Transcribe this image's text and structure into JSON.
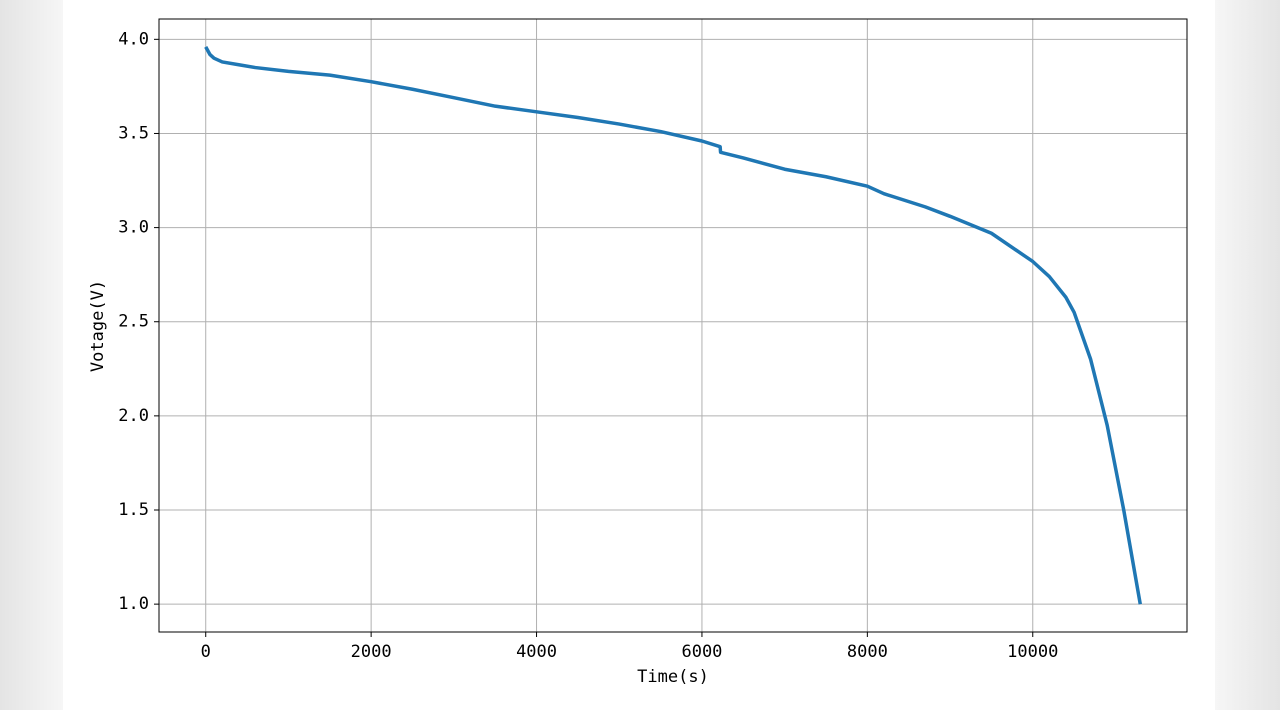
{
  "chart_data": {
    "type": "line",
    "x_label": "Time(s)",
    "y_label": "Votage(V)",
    "series": [
      {
        "color": "#1f77b4",
        "x": [
          0,
          50,
          100,
          200,
          400,
          600,
          1000,
          1500,
          2000,
          2500,
          3000,
          3500,
          4000,
          4500,
          5000,
          5500,
          6000,
          6220,
          6225,
          6500,
          7000,
          7500,
          8000,
          8200,
          8700,
          9000,
          9500,
          10000,
          10200,
          10400,
          10500,
          10700,
          10900,
          11100,
          11300
        ],
        "values": [
          3.96,
          3.92,
          3.9,
          3.88,
          3.865,
          3.85,
          3.83,
          3.81,
          3.775,
          3.735,
          3.69,
          3.645,
          3.615,
          3.585,
          3.55,
          3.51,
          3.46,
          3.43,
          3.4,
          3.37,
          3.31,
          3.27,
          3.22,
          3.18,
          3.11,
          3.06,
          2.97,
          2.82,
          2.74,
          2.63,
          2.55,
          2.3,
          1.95,
          1.5,
          1.0
        ]
      }
    ],
    "xlim": [
      -565,
      11865
    ],
    "xticks": [
      0,
      2000,
      4000,
      6000,
      8000,
      10000
    ],
    "ylim": [
      0.852,
      4.108
    ],
    "yticks": [
      {
        "value": 1,
        "label": "1.0"
      },
      1.5,
      {
        "value": 2,
        "label": "2.0"
      },
      2.5,
      {
        "value": 3,
        "label": "3.0"
      },
      3.5,
      {
        "value": 4,
        "label": "4.0"
      }
    ],
    "grid": true
  }
}
